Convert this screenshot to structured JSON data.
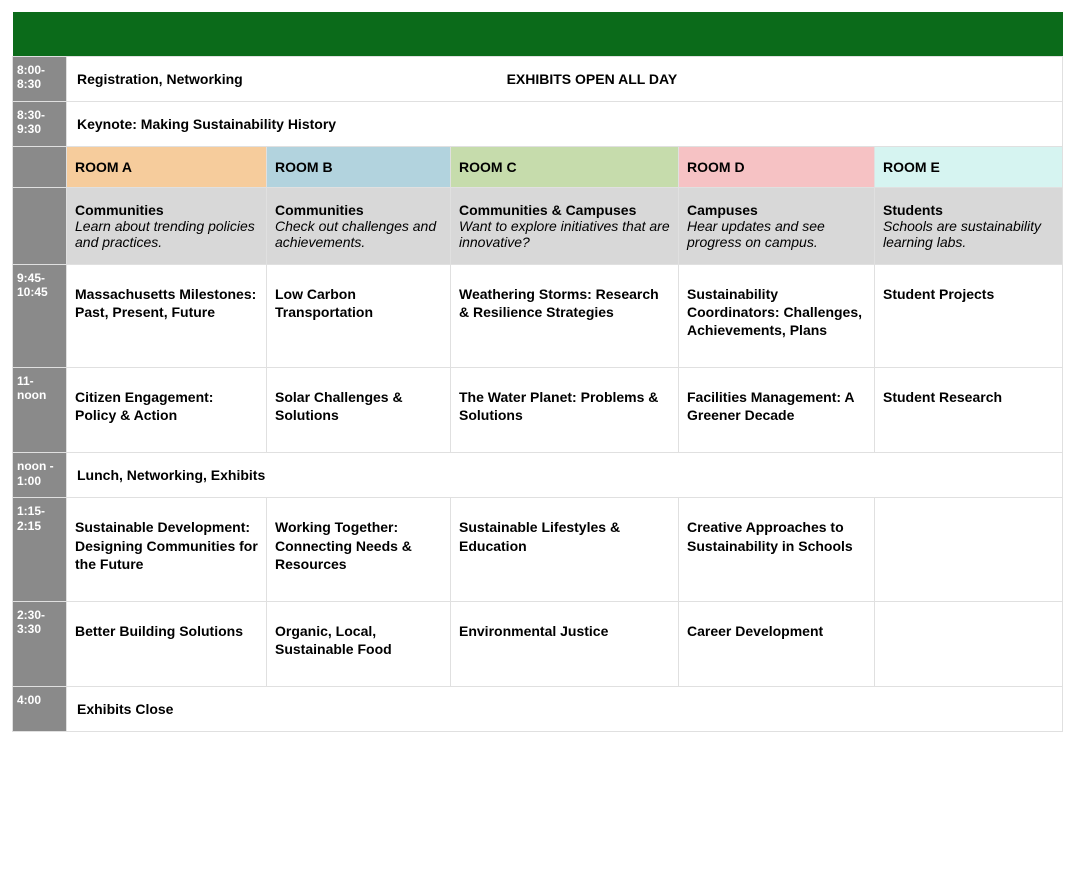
{
  "colors": {
    "header_bar": "#0b6b1a",
    "time_col": "#8a8a8a",
    "track_bg": "#d8d8d8",
    "room_a": "#f6cc9c",
    "room_b": "#b2d3de",
    "room_c": "#c6dcac",
    "room_d": "#f6c2c4",
    "room_e": "#d6f4f1",
    "border": "#e0e0e0"
  },
  "rooms": {
    "a": "ROOM A",
    "b": "ROOM B",
    "c": "ROOM C",
    "d": "ROOM D",
    "e": "ROOM E"
  },
  "tracks": {
    "a": {
      "title": "Communities",
      "desc": "Learn about trending policies and practices."
    },
    "b": {
      "title": "Communities",
      "desc": "Check out challenges and achievements."
    },
    "c": {
      "title": "Communities & Campuses",
      "desc": "Want to explore initiatives that are innovative?"
    },
    "d": {
      "title": "Campuses",
      "desc": "Hear updates and see progress on campus."
    },
    "e": {
      "title": "Students",
      "desc": "Schools are sustainability learning labs."
    }
  },
  "rows": {
    "r1": {
      "time": "8:00-8:30",
      "label": "Registration, Networking",
      "exhibits": "EXHIBITS OPEN ALL DAY"
    },
    "r2": {
      "time": "8:30-9:30",
      "label": "Keynote: Making Sustainability History"
    },
    "r3": {
      "time": "9:45-10:45",
      "a": "Massachusetts Milestones:\nPast, Present, Future",
      "b": "Low Carbon Transportation",
      "c": "Weathering Storms: Research & Resilience Strategies",
      "d": "Sustainability Coordinators: Challenges, Achievements, Plans",
      "e": "Student Projects"
    },
    "r4": {
      "time": "11-noon",
      "a": "Citizen Engagement: Policy & Action",
      "b": "Solar Challenges & Solutions",
      "c": "The Water Planet: Problems & Solutions",
      "d": "Facilities Management: A Greener Decade",
      "e": "Student Research"
    },
    "r5": {
      "time": "noon - 1:00",
      "label": "Lunch, Networking, Exhibits"
    },
    "r6": {
      "time": "1:15-2:15",
      "a": "Sustainable Development: Designing Communities for the Future",
      "b": "Working Together: Connecting Needs & Resources",
      "c": "Sustainable Lifestyles & Education",
      "d": "Creative Approaches to Sustainability in Schools",
      "e": ""
    },
    "r7": {
      "time": "2:30-3:30",
      "a": "Better Building Solutions",
      "b": "Organic, Local, Sustainable Food",
      "c": "Environmental Justice",
      "d": "Career Development",
      "e": ""
    },
    "r8": {
      "time": "4:00",
      "label": "Exhibits Close"
    }
  }
}
